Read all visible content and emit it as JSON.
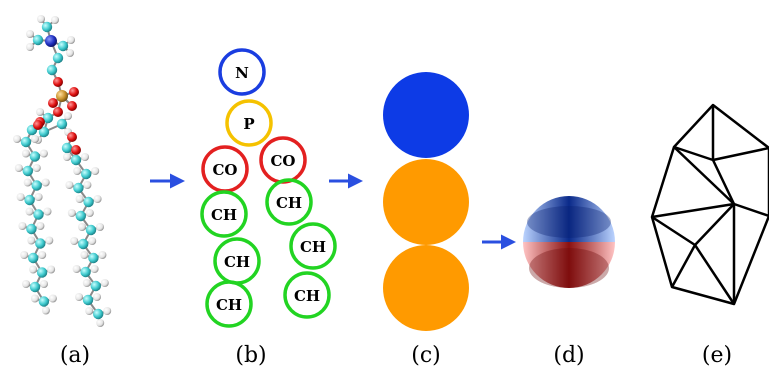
{
  "panels": [
    {
      "label": "(a)"
    },
    {
      "label": "(b)"
    },
    {
      "label": "(c)"
    },
    {
      "label": "(d)"
    },
    {
      "label": "(e)"
    }
  ],
  "beads": {
    "head_n": "N",
    "head_p": "P",
    "co_left": "CO",
    "co_right": "CO",
    "ch_left_1": "CH",
    "ch_left_2": "CH",
    "ch_left_3": "CH",
    "ch_right_1": "CH",
    "ch_right_2": "CH",
    "ch_right_3": "CH"
  },
  "colors": {
    "nitrogen_ring": "#1a3de0",
    "phosphate_ring": "#f5c200",
    "carbonyl_ring": "#e32020",
    "hydrocarbon_ring": "#22d422",
    "arrow": "#2a4fe0",
    "head_sphere": "#0d3be6",
    "tail_sphere": "#ff9a00",
    "atom_carbon": "#3cc8cc",
    "atom_hydrogen": "#ececec",
    "atom_oxygen": "#e01010",
    "atom_phosphorus": "#c8902a",
    "atom_nitrogen": "#2030c0"
  }
}
